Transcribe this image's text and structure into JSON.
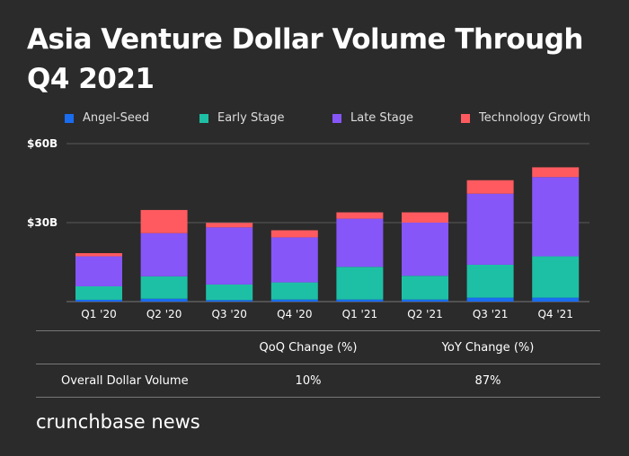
{
  "title": "Asia Venture Dollar Volume Through Q4 2021",
  "chart_data": {
    "type": "bar",
    "stacked": true,
    "title": "Asia Venture Dollar Volume Through Q4 2021",
    "categories": [
      "Q1 '20",
      "Q2 '20",
      "Q3 '20",
      "Q4 '20",
      "Q1 '21",
      "Q2 '21",
      "Q3 '21",
      "Q4 '21"
    ],
    "series": [
      {
        "name": "Angel-Seed",
        "color": "#1a6cf0",
        "values": [
          0.7,
          1.1,
          0.6,
          0.8,
          0.8,
          0.8,
          1.5,
          1.5
        ]
      },
      {
        "name": "Early Stage",
        "color": "#1ec0a5",
        "values": [
          5.1,
          8.5,
          5.9,
          6.5,
          12.4,
          9.0,
          12.5,
          15.7
        ]
      },
      {
        "name": "Late Stage",
        "color": "#8656f8",
        "values": [
          11.4,
          16.4,
          21.7,
          17.1,
          18.3,
          20.2,
          27.0,
          30.1
        ]
      },
      {
        "name": "Technology Growth",
        "color": "#ff5a5f",
        "values": [
          1.2,
          8.8,
          1.7,
          2.7,
          2.4,
          3.9,
          5.1,
          3.7
        ]
      }
    ],
    "yticks": [
      "$30B",
      "$60B"
    ],
    "ytick_values": [
      30,
      60
    ],
    "ylim": [
      0,
      60
    ],
    "grid": true,
    "legend": "top"
  },
  "table": {
    "headers": [
      "",
      "QoQ Change (%)",
      "YoY Change (%)"
    ],
    "rows": [
      [
        "Overall Dollar Volume",
        "10%",
        "87%"
      ]
    ]
  },
  "brand": "crunchbase news"
}
